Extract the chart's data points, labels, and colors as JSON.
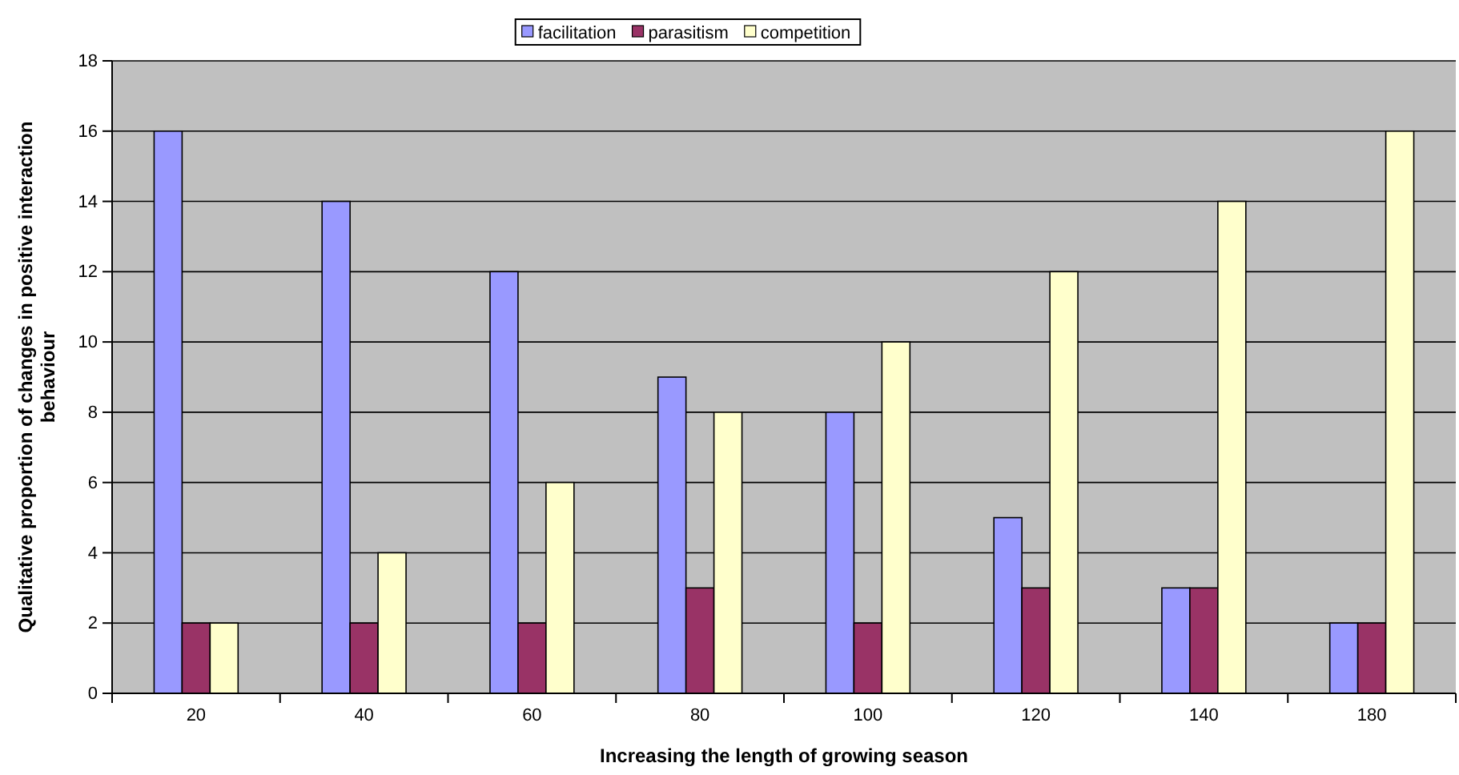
{
  "chart_data": {
    "type": "bar",
    "xlabel": "Increasing the length of growing season",
    "ylabel": "Qualitative proportion of changes in positive interaction behaviour",
    "categories": [
      "20",
      "40",
      "60",
      "80",
      "100",
      "120",
      "140",
      "180"
    ],
    "series": [
      {
        "name": "facilitation",
        "color": "#9999ff",
        "values": [
          16,
          14,
          12,
          9,
          8,
          5,
          3,
          2
        ]
      },
      {
        "name": "parasitism",
        "color": "#993366",
        "values": [
          2,
          2,
          2,
          3,
          2,
          3,
          3,
          2
        ]
      },
      {
        "name": "competition",
        "color": "#ffffcc",
        "values": [
          2,
          4,
          6,
          8,
          10,
          12,
          14,
          16
        ]
      }
    ],
    "ylim": [
      0,
      18
    ],
    "yticks": [
      0,
      2,
      4,
      6,
      8,
      10,
      12,
      14,
      16,
      18
    ],
    "grid": "y",
    "legend": "top"
  }
}
